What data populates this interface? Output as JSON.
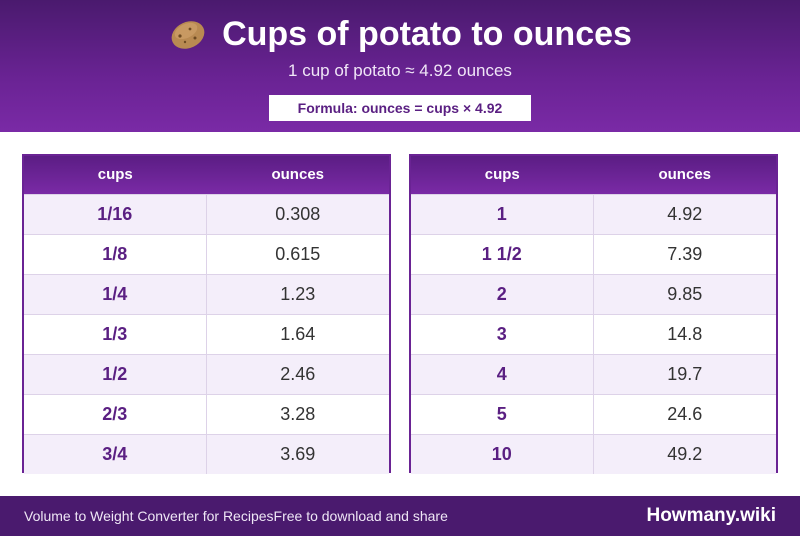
{
  "header": {
    "title": "Cups of potato to ounces",
    "subtitle": "1 cup of potato ≈ 4.92 ounces",
    "formula": "Formula: ounces = cups × 4.92",
    "icon": "potato-icon"
  },
  "tables": [
    {
      "col_cups": "cups",
      "col_oz": "ounces",
      "rows": [
        {
          "cups": "1/16",
          "oz": "0.308"
        },
        {
          "cups": "1/8",
          "oz": "0.615"
        },
        {
          "cups": "1/4",
          "oz": "1.23"
        },
        {
          "cups": "1/3",
          "oz": "1.64"
        },
        {
          "cups": "1/2",
          "oz": "2.46"
        },
        {
          "cups": "2/3",
          "oz": "3.28"
        },
        {
          "cups": "3/4",
          "oz": "3.69"
        }
      ]
    },
    {
      "col_cups": "cups",
      "col_oz": "ounces",
      "rows": [
        {
          "cups": "1",
          "oz": "4.92"
        },
        {
          "cups": "1 1/2",
          "oz": "7.39"
        },
        {
          "cups": "2",
          "oz": "9.85"
        },
        {
          "cups": "3",
          "oz": "14.8"
        },
        {
          "cups": "4",
          "oz": "19.7"
        },
        {
          "cups": "5",
          "oz": "24.6"
        },
        {
          "cups": "10",
          "oz": "49.2"
        }
      ]
    }
  ],
  "footer": {
    "left_text": "Volume to Weight Converter for Recipes",
    "left_note": "Free to download and share",
    "brand": "Howmany.wiki"
  },
  "colors": {
    "brand_purple": "#6a2394",
    "dark_purple": "#4a1a6e",
    "row_alt": "#f4eefa"
  }
}
